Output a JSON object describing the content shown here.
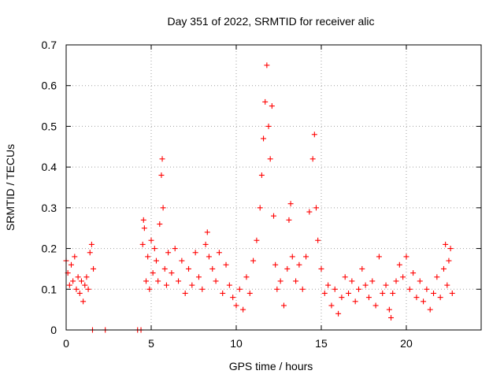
{
  "chart_data": {
    "type": "scatter",
    "title": "Day 351 of 2022, SRMTID for receiver alic",
    "xlabel": "GPS time / hours",
    "ylabel": "SRMTID / TECUs",
    "xlim": [
      0,
      24.4
    ],
    "ylim": [
      0,
      0.7
    ],
    "xticks": [
      0,
      5,
      10,
      15,
      20
    ],
    "xtick_labels": [
      "0",
      "5",
      "10",
      "15",
      "20"
    ],
    "yticks": [
      0,
      0.1,
      0.2,
      0.3,
      0.4,
      0.5,
      0.6,
      0.7
    ],
    "ytick_labels": [
      "0",
      "0.1",
      "0.2",
      "0.3",
      "0.4",
      "0.5",
      "0.6",
      "0.7"
    ],
    "grid": true,
    "marker": "plus",
    "series": [
      {
        "name": "SRMTID",
        "color": "#ff0000",
        "points": [
          [
            0.0,
            0.17
          ],
          [
            0.1,
            0.14
          ],
          [
            0.2,
            0.11
          ],
          [
            0.3,
            0.16
          ],
          [
            0.4,
            0.12
          ],
          [
            0.5,
            0.18
          ],
          [
            0.6,
            0.1
          ],
          [
            0.7,
            0.13
          ],
          [
            0.8,
            0.09
          ],
          [
            0.9,
            0.12
          ],
          [
            1.0,
            0.07
          ],
          [
            1.1,
            0.11
          ],
          [
            1.2,
            0.13
          ],
          [
            1.3,
            0.1
          ],
          [
            1.4,
            0.19
          ],
          [
            1.5,
            0.21
          ],
          [
            1.55,
            0.0
          ],
          [
            1.6,
            0.15
          ],
          [
            2.3,
            0.0
          ],
          [
            4.2,
            0.0
          ],
          [
            4.4,
            0.0
          ],
          [
            4.5,
            0.21
          ],
          [
            4.55,
            0.27
          ],
          [
            4.6,
            0.25
          ],
          [
            4.7,
            0.12
          ],
          [
            4.8,
            0.18
          ],
          [
            4.9,
            0.1
          ],
          [
            5.0,
            0.22
          ],
          [
            5.1,
            0.14
          ],
          [
            5.2,
            0.2
          ],
          [
            5.3,
            0.17
          ],
          [
            5.4,
            0.12
          ],
          [
            5.5,
            0.26
          ],
          [
            5.6,
            0.38
          ],
          [
            5.65,
            0.42
          ],
          [
            5.7,
            0.3
          ],
          [
            5.8,
            0.15
          ],
          [
            5.9,
            0.11
          ],
          [
            6.0,
            0.19
          ],
          [
            6.2,
            0.14
          ],
          [
            6.4,
            0.2
          ],
          [
            6.6,
            0.12
          ],
          [
            6.8,
            0.17
          ],
          [
            7.0,
            0.09
          ],
          [
            7.2,
            0.15
          ],
          [
            7.4,
            0.11
          ],
          [
            7.6,
            0.19
          ],
          [
            7.8,
            0.13
          ],
          [
            8.0,
            0.1
          ],
          [
            8.2,
            0.21
          ],
          [
            8.3,
            0.24
          ],
          [
            8.4,
            0.18
          ],
          [
            8.6,
            0.15
          ],
          [
            8.8,
            0.12
          ],
          [
            9.0,
            0.19
          ],
          [
            9.2,
            0.09
          ],
          [
            9.4,
            0.16
          ],
          [
            9.6,
            0.11
          ],
          [
            9.8,
            0.08
          ],
          [
            10.0,
            0.06
          ],
          [
            10.2,
            0.1
          ],
          [
            10.4,
            0.05
          ],
          [
            10.6,
            0.13
          ],
          [
            10.8,
            0.09
          ],
          [
            11.0,
            0.17
          ],
          [
            11.2,
            0.22
          ],
          [
            11.4,
            0.3
          ],
          [
            11.5,
            0.38
          ],
          [
            11.6,
            0.47
          ],
          [
            11.7,
            0.56
          ],
          [
            11.8,
            0.65
          ],
          [
            11.9,
            0.5
          ],
          [
            12.0,
            0.42
          ],
          [
            12.1,
            0.55
          ],
          [
            12.2,
            0.28
          ],
          [
            12.3,
            0.16
          ],
          [
            12.4,
            0.1
          ],
          [
            12.6,
            0.12
          ],
          [
            12.8,
            0.06
          ],
          [
            13.0,
            0.15
          ],
          [
            13.1,
            0.27
          ],
          [
            13.2,
            0.31
          ],
          [
            13.3,
            0.18
          ],
          [
            13.5,
            0.12
          ],
          [
            13.7,
            0.16
          ],
          [
            13.9,
            0.1
          ],
          [
            14.1,
            0.18
          ],
          [
            14.3,
            0.29
          ],
          [
            14.5,
            0.42
          ],
          [
            14.6,
            0.48
          ],
          [
            14.7,
            0.3
          ],
          [
            14.8,
            0.22
          ],
          [
            15.0,
            0.15
          ],
          [
            15.2,
            0.09
          ],
          [
            15.4,
            0.11
          ],
          [
            15.6,
            0.06
          ],
          [
            15.8,
            0.1
          ],
          [
            16.0,
            0.04
          ],
          [
            16.2,
            0.08
          ],
          [
            16.4,
            0.13
          ],
          [
            16.6,
            0.09
          ],
          [
            16.8,
            0.12
          ],
          [
            17.0,
            0.07
          ],
          [
            17.2,
            0.1
          ],
          [
            17.4,
            0.15
          ],
          [
            17.6,
            0.11
          ],
          [
            17.8,
            0.08
          ],
          [
            18.0,
            0.12
          ],
          [
            18.2,
            0.06
          ],
          [
            18.4,
            0.18
          ],
          [
            18.6,
            0.09
          ],
          [
            18.8,
            0.11
          ],
          [
            19.0,
            0.05
          ],
          [
            19.1,
            0.03
          ],
          [
            19.2,
            0.09
          ],
          [
            19.4,
            0.12
          ],
          [
            19.6,
            0.16
          ],
          [
            19.8,
            0.13
          ],
          [
            20.0,
            0.18
          ],
          [
            20.2,
            0.1
          ],
          [
            20.4,
            0.14
          ],
          [
            20.6,
            0.08
          ],
          [
            20.8,
            0.12
          ],
          [
            21.0,
            0.07
          ],
          [
            21.2,
            0.1
          ],
          [
            21.4,
            0.05
          ],
          [
            21.6,
            0.09
          ],
          [
            21.8,
            0.13
          ],
          [
            22.0,
            0.08
          ],
          [
            22.2,
            0.15
          ],
          [
            22.3,
            0.21
          ],
          [
            22.4,
            0.11
          ],
          [
            22.5,
            0.17
          ],
          [
            22.6,
            0.2
          ],
          [
            22.7,
            0.09
          ]
        ]
      }
    ]
  }
}
